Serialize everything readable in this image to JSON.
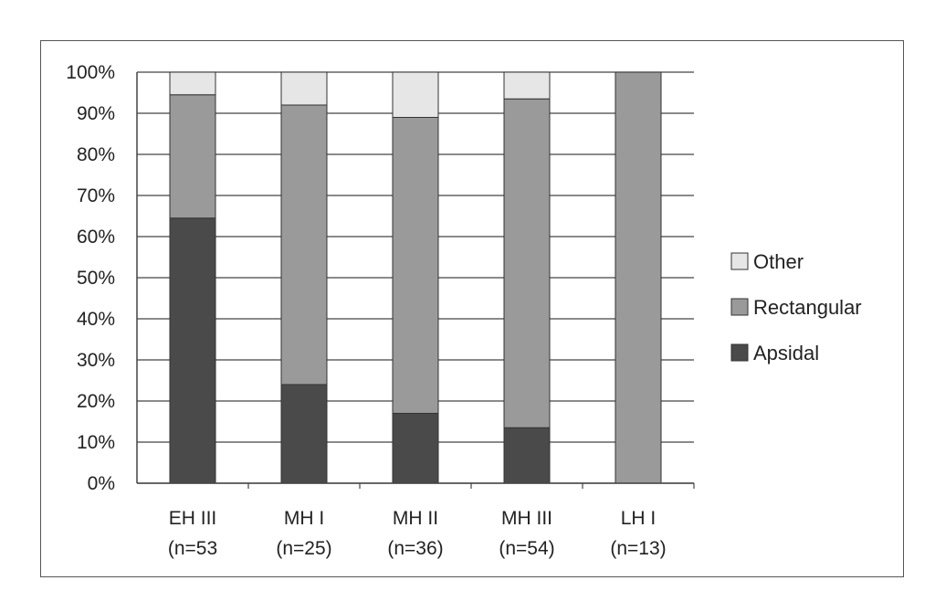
{
  "chart_data": {
    "type": "bar",
    "stacked": true,
    "percent": true,
    "categories": [
      "EH III (n=53",
      "MH I (n=25)",
      "MH II (n=36)",
      "MH III (n=54)",
      "LH I (n=13)"
    ],
    "category_lines": [
      [
        "EH III",
        "(n=53"
      ],
      [
        "MH I",
        "(n=25)"
      ],
      [
        "MH II",
        "(n=36)"
      ],
      [
        "MH III",
        "(n=54)"
      ],
      [
        "LH I",
        "(n=13)"
      ]
    ],
    "series": [
      {
        "name": "Apsidal",
        "values": [
          64.5,
          24,
          17,
          13.5,
          0
        ],
        "color": "#4a4a4a"
      },
      {
        "name": "Rectangular",
        "values": [
          30,
          68,
          72,
          80,
          100
        ],
        "color": "#9a9a9a"
      },
      {
        "name": "Other",
        "values": [
          5.5,
          8,
          11,
          6.5,
          0
        ],
        "color": "#e6e6e6"
      }
    ],
    "legend_order": [
      "Other",
      "Rectangular",
      "Apsidal"
    ],
    "legend_position": "right",
    "ylim": [
      0,
      100
    ],
    "yticks": [
      "0%",
      "10%",
      "20%",
      "30%",
      "40%",
      "50%",
      "60%",
      "70%",
      "80%",
      "90%",
      "100%"
    ],
    "grid": true
  }
}
